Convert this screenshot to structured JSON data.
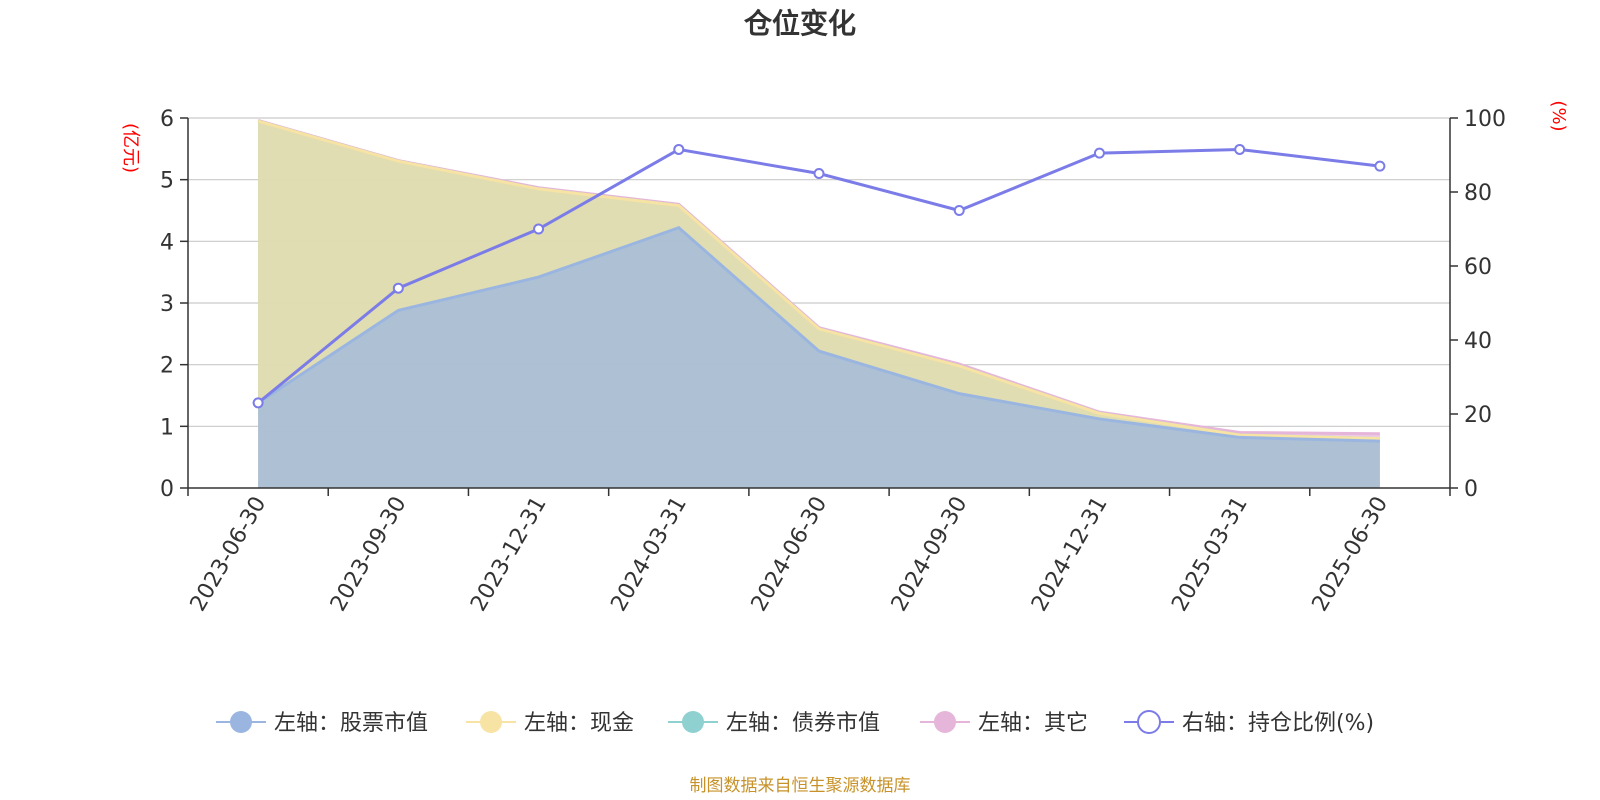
{
  "chart_data": {
    "type": "area",
    "title": "仓位变化",
    "left_unit": "(亿元)",
    "right_unit": "(%)",
    "categories": [
      "2023-06-30",
      "2023-09-30",
      "2023-12-31",
      "2024-03-31",
      "2024-06-30",
      "2024-09-30",
      "2024-12-31",
      "2025-03-31",
      "2025-06-30"
    ],
    "left_axis": {
      "min": 0,
      "max": 6,
      "ticks": [
        0,
        1,
        2,
        3,
        4,
        5,
        6
      ]
    },
    "right_axis": {
      "min": 0,
      "max": 100,
      "ticks": [
        0,
        20,
        40,
        60,
        80,
        100
      ]
    },
    "series": [
      {
        "name": "左轴：股票市值",
        "axis": "left",
        "kind": "stacked-area",
        "color": "#9ab6e0",
        "values": [
          1.38,
          2.88,
          3.42,
          4.22,
          2.22,
          1.53,
          1.12,
          0.82,
          0.76
        ]
      },
      {
        "name": "左轴：现金",
        "axis": "left",
        "kind": "stacked-area",
        "color": "#f7e3a3",
        "values": [
          4.57,
          2.42,
          1.43,
          0.36,
          0.36,
          0.45,
          0.09,
          0.04,
          0.04
        ]
      },
      {
        "name": "左轴：债券市值",
        "axis": "left",
        "kind": "stacked-area",
        "color": "#8fd0d0",
        "values": [
          0,
          0,
          0,
          0,
          0,
          0,
          0,
          0,
          0
        ]
      },
      {
        "name": "左轴：其它",
        "axis": "left",
        "kind": "stacked-area",
        "color": "#e6b5da",
        "values": [
          0.01,
          0.01,
          0.02,
          0.02,
          0.02,
          0.03,
          0.02,
          0.04,
          0.08
        ]
      },
      {
        "name": "右轴：持仓比例(%)",
        "axis": "right",
        "kind": "line",
        "color": "#7b7ce8",
        "values": [
          23,
          54,
          70,
          91.5,
          85,
          75,
          90.5,
          91.5,
          87
        ]
      }
    ]
  },
  "source_note": "制图数据来自恒生聚源数据库"
}
